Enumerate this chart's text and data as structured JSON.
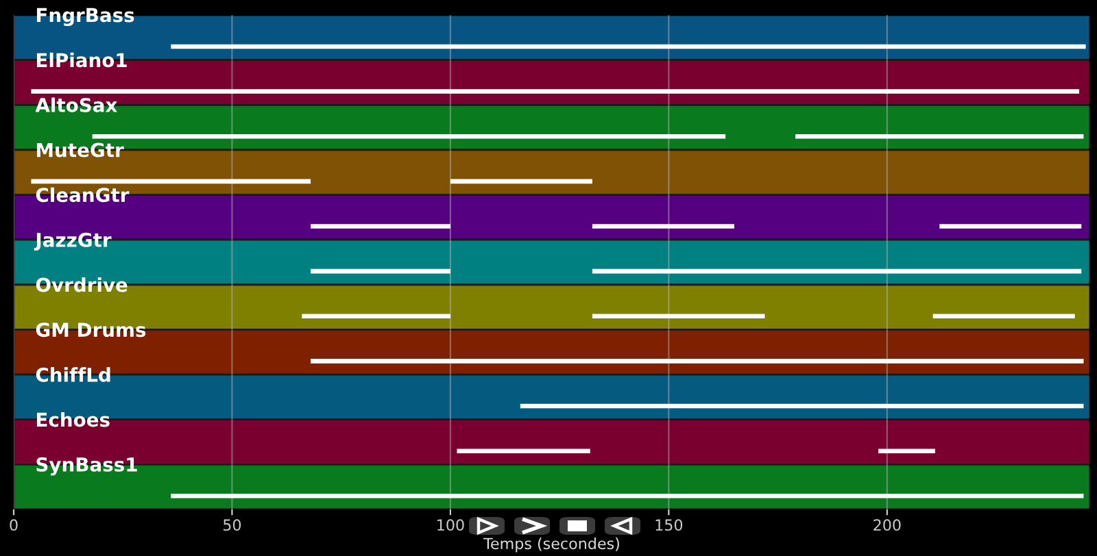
{
  "chart_data": {
    "type": "bar",
    "orientation": "horizontal",
    "xlabel": "Temps (secondes)",
    "categories": [
      "FngrBass",
      "ElPiano1",
      "AltoSax",
      "MuteGtr",
      "CleanGtr",
      "JazzGtr",
      "Ovrdrive",
      "GM Drums",
      "ChiffLd",
      "Echoes",
      "SynBass1"
    ],
    "xlim": [
      0,
      246.5
    ],
    "xticks": [
      0,
      50,
      100,
      150,
      200
    ],
    "grid": "x",
    "series": [
      {
        "colors": [
          "#075482",
          "#7a0030",
          "#0a7a1e",
          "#7f5206",
          "#550080",
          "#008080",
          "#808000",
          "#7f2000",
          "#055a80",
          "#7a0030",
          "#0a7a1e"
        ],
        "base": [
          0,
          0,
          0,
          0,
          0,
          0,
          0,
          0,
          0,
          0,
          0
        ],
        "values": [
          246.5,
          246.5,
          246.5,
          246.5,
          246.5,
          246.5,
          246.5,
          246.5,
          246.5,
          246.5,
          246.5
        ]
      },
      {
        "color": "#ffffff",
        "base": [
          36,
          4,
          18,
          4,
          68,
          68,
          66,
          68,
          116,
          101.5,
          36
        ],
        "values": [
          209.5,
          240,
          145,
          64,
          32,
          32,
          34,
          177,
          129,
          30.5,
          209
        ]
      },
      {
        "color": "#ffffff",
        "base": [
          null,
          null,
          179,
          100,
          132.5,
          132.5,
          132.5,
          null,
          null,
          198,
          null
        ],
        "values": [
          null,
          null,
          66,
          32.5,
          32.5,
          112,
          39.5,
          null,
          null,
          13,
          null
        ]
      },
      {
        "color": "#ffffff",
        "base": [
          null,
          null,
          null,
          null,
          212,
          null,
          210.5,
          null,
          null,
          null,
          null
        ],
        "values": [
          null,
          null,
          null,
          null,
          32.5,
          null,
          32.5,
          null,
          null,
          null,
          null
        ]
      }
    ]
  }
}
